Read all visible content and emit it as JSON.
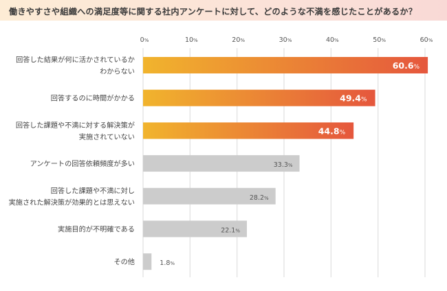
{
  "header": {
    "title": "働きやすさや組織への満足度等に関する社内アンケートに対して、どのような不満を感じたことがあるか？"
  },
  "colors": {
    "highlight_start": "#f1b42d",
    "highlight_end": "#e5573d",
    "gray_bar": "#cccccc",
    "gridline": "#e2e2e2"
  },
  "chart_data": {
    "type": "bar",
    "orientation": "horizontal",
    "title": "働きやすさや組織への満足度等に関する社内アンケートに対して、どのような不満を感じたことがあるか？",
    "xlabel": "",
    "ylabel": "",
    "xlim": [
      0,
      60
    ],
    "xticks": [
      0,
      10,
      20,
      30,
      40,
      50,
      60
    ],
    "tick_suffix": "%",
    "grid": true,
    "categories": [
      [
        "回答した結果が何に活かされているか",
        "わからない"
      ],
      [
        "回答するのに時間がかかる"
      ],
      [
        "回答した課題や不満に対する解決策が",
        "実施されていない"
      ],
      [
        "アンケートの回答依頼頻度が多い"
      ],
      [
        "回答した課題や不満に対し",
        "実施された解決策が効果的とは思えない"
      ],
      [
        "実施目的が不明確である"
      ],
      [
        "その他"
      ]
    ],
    "values": [
      60.6,
      49.4,
      44.8,
      33.3,
      28.2,
      22.1,
      1.8
    ],
    "value_labels": [
      "60.6",
      "49.4",
      "44.8",
      "33.3",
      "28.2",
      "22.1",
      "1.8"
    ],
    "highlighted": [
      true,
      true,
      true,
      false,
      false,
      false,
      false
    ],
    "unit": "%"
  }
}
